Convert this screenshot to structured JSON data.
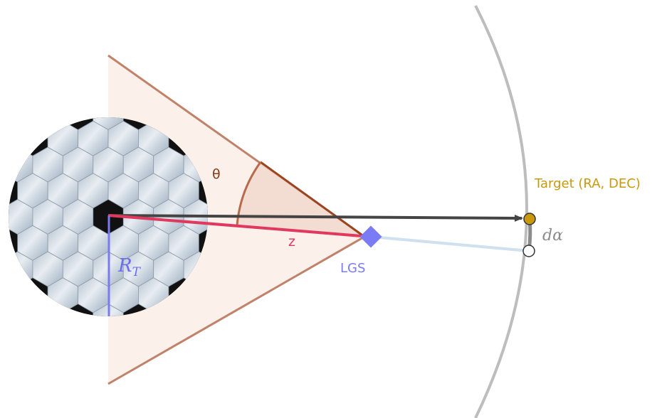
{
  "labels": {
    "theta": "θ",
    "z": "z",
    "lgs": "LGS",
    "target": "Target (RA, DEC)",
    "dalpha": "dα",
    "radius_main": "R",
    "radius_sub": "T"
  },
  "colors": {
    "cone_edge": "#c0826a",
    "cone_fill": "#fbeee8",
    "theta": "#8b3a1a",
    "z_line": "#e0385f",
    "lgs": "#7b7bf5",
    "radius": "#7b7bf0",
    "target": "#c9980f",
    "sky_arc": "#bdbdbd",
    "dalpha": "#8c8c8c",
    "beam": "#cfe0ee",
    "pointing_arrow": "#444444",
    "mirror_gap": "#111111",
    "segment": "#c3cdd8"
  }
}
